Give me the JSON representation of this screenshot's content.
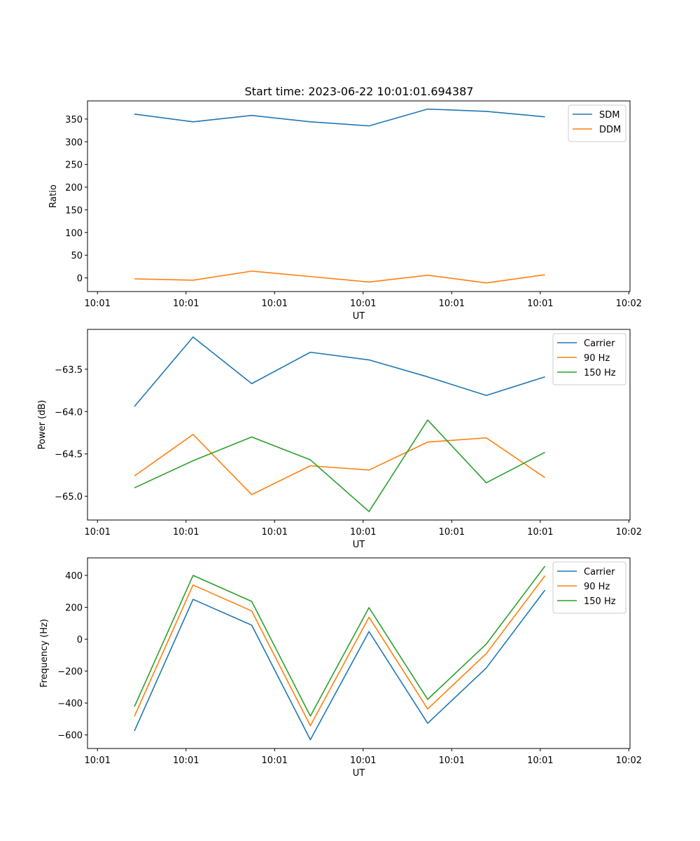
{
  "figure": {
    "title": "Start time: 2023-06-22 10:01:01.694387"
  },
  "colors": {
    "blue": "#1f77b4",
    "orange": "#ff7f0e",
    "green": "#2ca02c"
  },
  "chart_data": [
    {
      "type": "line",
      "title": "Start time: 2023-06-22 10:01:01.694387",
      "xlabel": "UT",
      "ylabel": "Ratio",
      "x": [
        1,
        2,
        3,
        4,
        5,
        6,
        7,
        8
      ],
      "x_range": [
        0.2,
        9.45
      ],
      "x_tick_positions": [
        0.37,
        1.88,
        3.39,
        4.9,
        6.41,
        7.92,
        9.43
      ],
      "x_tick_labels": [
        "10:01",
        "10:01",
        "10:01",
        "10:01",
        "10:01",
        "10:01",
        "10:02"
      ],
      "ylim": [
        -30,
        390
      ],
      "y_ticks": [
        0,
        50,
        100,
        150,
        200,
        250,
        300,
        350
      ],
      "y_tick_labels": [
        "0",
        "50",
        "100",
        "150",
        "200",
        "250",
        "300",
        "350"
      ],
      "legend_position": "top-right",
      "series": [
        {
          "name": "SDM",
          "color": "#1f77b4",
          "values": [
            361,
            344,
            358,
            344,
            335,
            372,
            367,
            355
          ]
        },
        {
          "name": "DDM",
          "color": "#ff7f0e",
          "values": [
            -2,
            -5,
            15,
            3,
            -9,
            6,
            -11,
            7
          ]
        }
      ]
    },
    {
      "type": "line",
      "xlabel": "UT",
      "ylabel": "Power (dB)",
      "x": [
        1,
        2,
        3,
        4,
        5,
        6,
        7,
        8
      ],
      "x_range": [
        0.2,
        9.45
      ],
      "x_tick_positions": [
        0.37,
        1.88,
        3.39,
        4.9,
        6.41,
        7.92,
        9.43
      ],
      "x_tick_labels": [
        "10:01",
        "10:01",
        "10:01",
        "10:01",
        "10:01",
        "10:01",
        "10:02"
      ],
      "ylim": [
        -65.28,
        -63.03
      ],
      "y_ticks": [
        -65.0,
        -64.5,
        -64.0,
        -63.5
      ],
      "y_tick_labels": [
        "−65.0",
        "−64.5",
        "−64.0",
        "−63.5"
      ],
      "legend_position": "top-right",
      "series": [
        {
          "name": "Carrier",
          "color": "#1f77b4",
          "values": [
            -63.94,
            -63.12,
            -63.67,
            -63.3,
            -63.39,
            -63.59,
            -63.81,
            -63.59
          ]
        },
        {
          "name": "90 Hz",
          "color": "#ff7f0e",
          "values": [
            -64.76,
            -64.27,
            -64.98,
            -64.64,
            -64.69,
            -64.36,
            -64.31,
            -64.78
          ]
        },
        {
          "name": "150 Hz",
          "color": "#2ca02c",
          "values": [
            -64.9,
            -64.58,
            -64.3,
            -64.57,
            -65.18,
            -64.1,
            -64.84,
            -64.48
          ]
        }
      ]
    },
    {
      "type": "line",
      "xlabel": "UT",
      "ylabel": "Frequency (Hz)",
      "x": [
        1,
        2,
        3,
        4,
        5,
        6,
        7,
        8
      ],
      "x_range": [
        0.2,
        9.45
      ],
      "x_tick_positions": [
        0.37,
        1.88,
        3.39,
        4.9,
        6.41,
        7.92,
        9.43
      ],
      "x_tick_labels": [
        "10:01",
        "10:01",
        "10:01",
        "10:01",
        "10:01",
        "10:01",
        "10:02"
      ],
      "ylim": [
        -685,
        510
      ],
      "y_ticks": [
        -600,
        -400,
        -200,
        0,
        200,
        400
      ],
      "y_tick_labels": [
        "−600",
        "−400",
        "−200",
        "0",
        "200",
        "400"
      ],
      "legend_position": "top-right",
      "series": [
        {
          "name": "Carrier",
          "color": "#1f77b4",
          "values": [
            -575,
            250,
            88,
            -630,
            48,
            -527,
            -180,
            308
          ]
        },
        {
          "name": "90 Hz",
          "color": "#ff7f0e",
          "values": [
            -483,
            340,
            177,
            -542,
            138,
            -437,
            -90,
            398
          ]
        },
        {
          "name": "150 Hz",
          "color": "#2ca02c",
          "values": [
            -423,
            400,
            237,
            -482,
            198,
            -377,
            -30,
            458
          ]
        }
      ]
    }
  ]
}
